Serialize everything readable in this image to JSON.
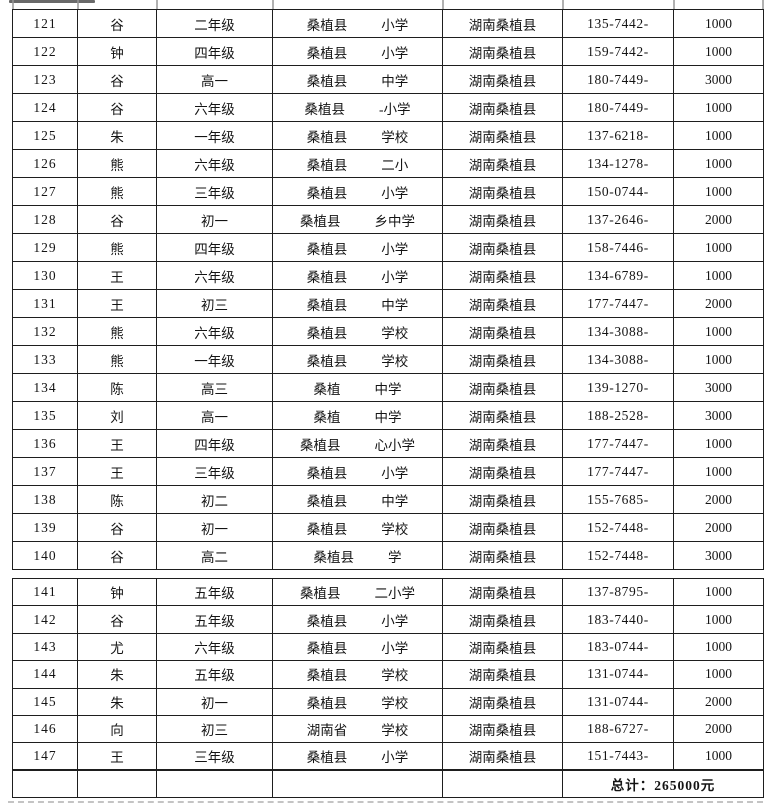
{
  "colors": {
    "border": "#1e1e1e",
    "text": "#141414",
    "background": "#ffffff",
    "artifact_gray": "#979797"
  },
  "total": {
    "label": "总计：265000元"
  },
  "sections": [
    {
      "name": "rows-121-140",
      "rows": [
        {
          "no": "121",
          "name": "谷",
          "grade": "二年级",
          "school_left": "桑植县",
          "school_right": "小学",
          "region": "湖南桑植县",
          "phone": "135-7442-",
          "amount": "1000"
        },
        {
          "no": "122",
          "name": "钟",
          "grade": "四年级",
          "school_left": "桑植县",
          "school_right": "小学",
          "region": "湖南桑植县",
          "phone": "159-7442-",
          "amount": "1000"
        },
        {
          "no": "123",
          "name": "谷",
          "grade": "高一",
          "school_left": "桑植县",
          "school_right": "中学",
          "region": "湖南桑植县",
          "phone": "180-7449-",
          "amount": "3000"
        },
        {
          "no": "124",
          "name": "谷",
          "grade": "六年级",
          "school_left": "桑植县",
          "school_right": "-小学",
          "region": "湖南桑植县",
          "phone": "180-7449-",
          "amount": "1000"
        },
        {
          "no": "125",
          "name": "朱",
          "grade": "一年级",
          "school_left": "桑植县",
          "school_right": "学校",
          "region": "湖南桑植县",
          "phone": "137-6218-",
          "amount": "1000"
        },
        {
          "no": "126",
          "name": "熊",
          "grade": "六年级",
          "school_left": "桑植县",
          "school_right": "二小",
          "region": "湖南桑植县",
          "phone": "134-1278-",
          "amount": "1000"
        },
        {
          "no": "127",
          "name": "熊",
          "grade": "三年级",
          "school_left": "桑植县",
          "school_right": "小学",
          "region": "湖南桑植县",
          "phone": "150-0744-",
          "amount": "1000"
        },
        {
          "no": "128",
          "name": "谷",
          "grade": "初一",
          "school_left": "桑植县",
          "school_right": "乡中学",
          "region": "湖南桑植县",
          "phone": "137-2646-",
          "amount": "2000"
        },
        {
          "no": "129",
          "name": "熊",
          "grade": "四年级",
          "school_left": "桑植县",
          "school_right": "小学",
          "region": "湖南桑植县",
          "phone": "158-7446-",
          "amount": "1000"
        },
        {
          "no": "130",
          "name": "王",
          "grade": "六年级",
          "school_left": "桑植县",
          "school_right": "小学",
          "region": "湖南桑植县",
          "phone": "134-6789-",
          "amount": "1000"
        },
        {
          "no": "131",
          "name": "王",
          "grade": "初三",
          "school_left": "桑植县",
          "school_right": "中学",
          "region": "湖南桑植县",
          "phone": "177-7447-",
          "amount": "2000"
        },
        {
          "no": "132",
          "name": "熊",
          "grade": "六年级",
          "school_left": "桑植县",
          "school_right": "学校",
          "region": "湖南桑植县",
          "phone": "134-3088-",
          "amount": "1000"
        },
        {
          "no": "133",
          "name": "熊",
          "grade": "一年级",
          "school_left": "桑植县",
          "school_right": "学校",
          "region": "湖南桑植县",
          "phone": "134-3088-",
          "amount": "1000"
        },
        {
          "no": "134",
          "name": "陈",
          "grade": "高三",
          "school_left": "桑植",
          "school_right": "中学",
          "region": "湖南桑植县",
          "phone": "139-1270-",
          "amount": "3000"
        },
        {
          "no": "135",
          "name": "刘",
          "grade": "高一",
          "school_left": "桑植",
          "school_right": "中学",
          "region": "湖南桑植县",
          "phone": "188-2528-",
          "amount": "3000"
        },
        {
          "no": "136",
          "name": "王",
          "grade": "四年级",
          "school_left": "桑植县",
          "school_right": "心小学",
          "region": "湖南桑植县",
          "phone": "177-7447-",
          "amount": "1000"
        },
        {
          "no": "137",
          "name": "王",
          "grade": "三年级",
          "school_left": "桑植县",
          "school_right": "小学",
          "region": "湖南桑植县",
          "phone": "177-7447-",
          "amount": "1000"
        },
        {
          "no": "138",
          "name": "陈",
          "grade": "初二",
          "school_left": "桑植县",
          "school_right": "中学",
          "region": "湖南桑植县",
          "phone": "155-7685-",
          "amount": "2000"
        },
        {
          "no": "139",
          "name": "谷",
          "grade": "初一",
          "school_left": "桑植县",
          "school_right": "学校",
          "region": "湖南桑植县",
          "phone": "152-7448-",
          "amount": "2000"
        },
        {
          "no": "140",
          "name": "谷",
          "grade": "高二",
          "school_left": "桑植县",
          "school_right": "学",
          "region": "湖南桑植县",
          "phone": "152-7448-",
          "amount": "3000"
        }
      ]
    },
    {
      "name": "rows-141-147",
      "rows": [
        {
          "no": "141",
          "name": "钟",
          "grade": "五年级",
          "school_left": "桑植县",
          "school_right": "二小学",
          "region": "湖南桑植县",
          "phone": "137-8795-",
          "amount": "1000"
        },
        {
          "no": "142",
          "name": "谷",
          "grade": "五年级",
          "school_left": "桑植县",
          "school_right": "小学",
          "region": "湖南桑植县",
          "phone": "183-7440-",
          "amount": "1000"
        },
        {
          "no": "143",
          "name": "尤",
          "grade": "六年级",
          "school_left": "桑植县",
          "school_right": "小学",
          "region": "湖南桑植县",
          "phone": "183-0744-",
          "amount": "1000"
        },
        {
          "no": "144",
          "name": "朱",
          "grade": "五年级",
          "school_left": "桑植县",
          "school_right": "学校",
          "region": "湖南桑植县",
          "phone": "131-0744-",
          "amount": "1000"
        },
        {
          "no": "145",
          "name": "朱",
          "grade": "初一",
          "school_left": "桑植县",
          "school_right": "学校",
          "region": "湖南桑植县",
          "phone": "131-0744-",
          "amount": "2000"
        },
        {
          "no": "146",
          "name": "向",
          "grade": "初三",
          "school_left": "湖南省",
          "school_right": "学校",
          "region": "湖南桑植县",
          "phone": "188-6727-",
          "amount": "2000"
        },
        {
          "no": "147",
          "name": "王",
          "grade": "三年级",
          "school_left": "桑植县",
          "school_right": "小学",
          "region": "湖南桑植县",
          "phone": "151-7443-",
          "amount": "1000"
        }
      ]
    }
  ]
}
